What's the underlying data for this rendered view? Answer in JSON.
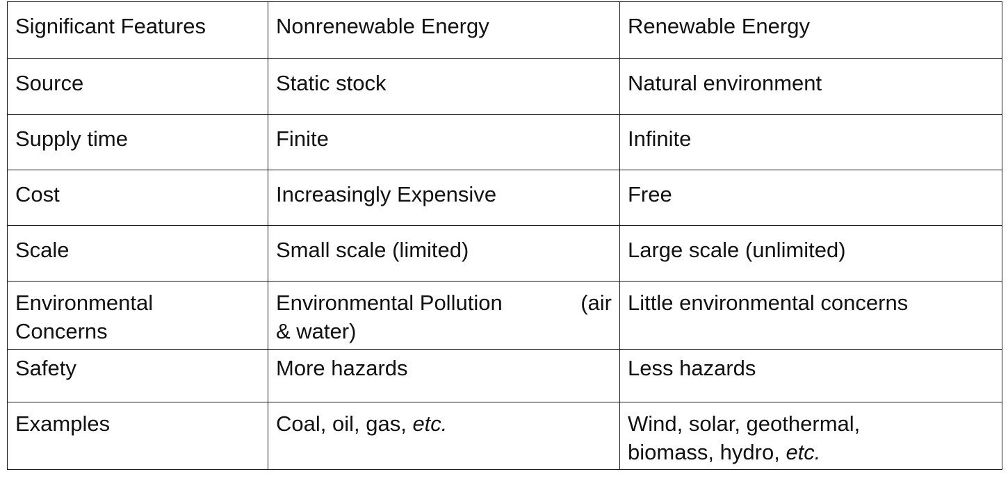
{
  "table": {
    "headers": [
      "Significant Features",
      "Nonrenewable Energy",
      "Renewable Energy"
    ],
    "rows": [
      {
        "feature": "Source",
        "nonrenewable": "Static stock",
        "renewable": "Natural environment"
      },
      {
        "feature": "Supply time",
        "nonrenewable": "Finite",
        "renewable": "Infinite"
      },
      {
        "feature": "Cost",
        "nonrenewable": "Increasingly Expensive",
        "renewable": "Free"
      },
      {
        "feature": "Scale",
        "nonrenewable": "Small scale (limited)",
        "renewable": "Large scale (unlimited)"
      },
      {
        "feature_line1": "Environmental",
        "feature_line2": "Concerns",
        "nonrenewable_part1": "Environmental Pollution",
        "nonrenewable_part2": "(air",
        "nonrenewable_part3": "& water)",
        "renewable": "Little environmental concerns"
      },
      {
        "feature": "Safety",
        "nonrenewable": "More hazards",
        "renewable": "Less hazards"
      },
      {
        "feature": "Examples",
        "nonrenewable_text": "Coal, oil, gas, ",
        "nonrenewable_etc": "etc.",
        "renewable_line1": "Wind, solar, geothermal,",
        "renewable_line2": "biomass, hydro, ",
        "renewable_etc": "etc."
      }
    ]
  },
  "colors": {
    "header_text": "#b3261e",
    "feature_text": "#2e75b6",
    "body_text": "#111111",
    "border": "#1a1a1a"
  }
}
